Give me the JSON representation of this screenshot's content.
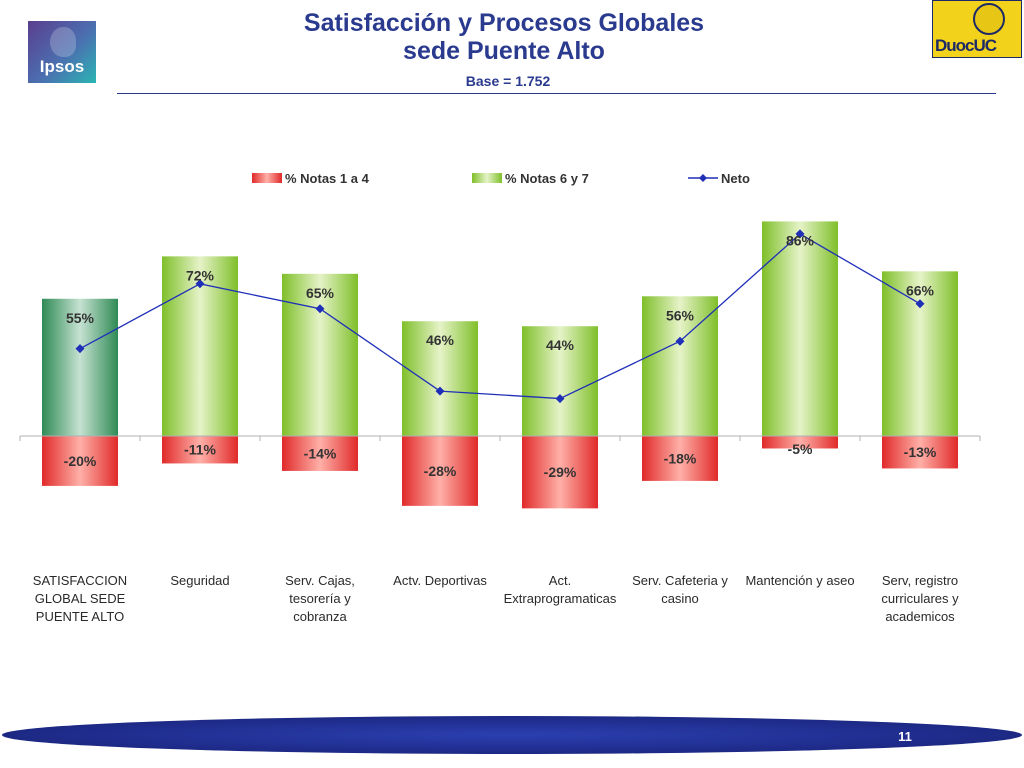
{
  "header": {
    "title_line1": "Satisfacción y Procesos Globales",
    "title_line2": "sede Puente Alto",
    "subtitle": "Base = 1.752",
    "logo_left": "Ipsos",
    "logo_right": "DuocUC"
  },
  "footer": {
    "page_number": "11"
  },
  "colors": {
    "title": "#2a3a8e",
    "negative_bar": "#e8333a",
    "positive_bar": "#8cc63f",
    "first_positive_bar": "#3a8f5c",
    "neto_line": "#1f2fb8"
  },
  "chart_data": {
    "type": "bar",
    "categories": [
      [
        "SATISFACCION",
        "GLOBAL SEDE",
        "PUENTE ALTO"
      ],
      [
        "Seguridad"
      ],
      [
        "Serv. Cajas,",
        "tesorería y",
        "cobranza"
      ],
      [
        "Actv. Deportivas"
      ],
      [
        "Act.",
        "Extraprogramaticas"
      ],
      [
        "Serv. Cafeteria y",
        "casino"
      ],
      [
        "Mantención y aseo"
      ],
      [
        "Serv, registro",
        "curriculares y",
        "academicos"
      ]
    ],
    "series": [
      {
        "name": "% Notas 1 a 4",
        "kind": "bar",
        "values": [
          -20,
          -11,
          -14,
          -28,
          -29,
          -18,
          -5,
          -13
        ],
        "labels": [
          "-20%",
          "-11%",
          "-14%",
          "-28%",
          "-29%",
          "-18%",
          "-5%",
          "-13%"
        ]
      },
      {
        "name": "% Notas 6 y 7",
        "kind": "bar",
        "values": [
          55,
          72,
          65,
          46,
          44,
          56,
          86,
          66
        ],
        "labels": [
          "55%",
          "72%",
          "65%",
          "46%",
          "44%",
          "56%",
          "86%",
          "66%"
        ]
      },
      {
        "name": "Neto",
        "kind": "line",
        "values": [
          35,
          61,
          51,
          18,
          15,
          38,
          81,
          53
        ]
      }
    ],
    "legend_position": "top",
    "grid": false,
    "ylim": [
      -35,
      90
    ]
  }
}
